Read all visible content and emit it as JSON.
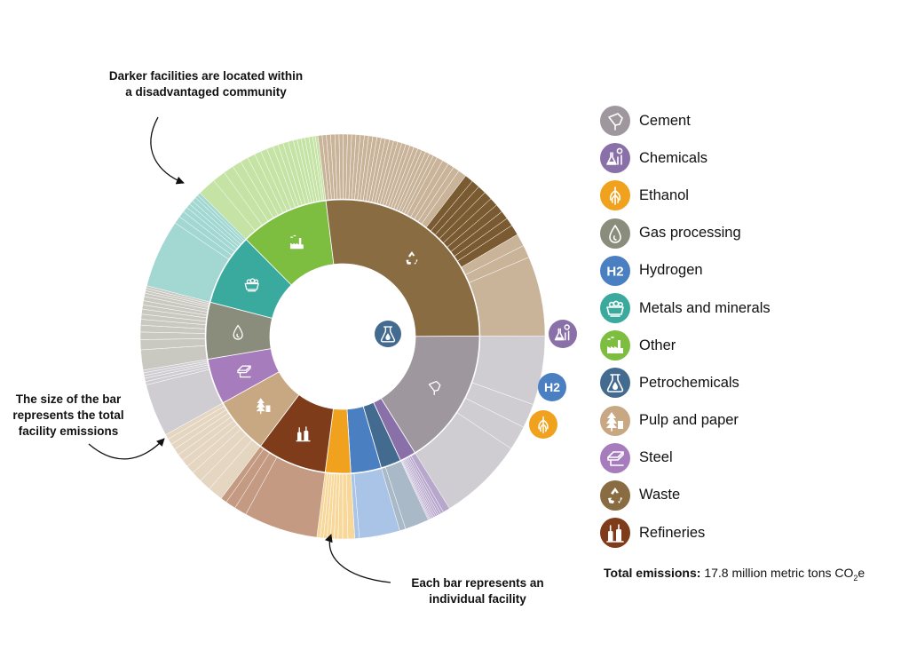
{
  "annotations": {
    "darker": "Darker facilities are located within a disadvantaged community",
    "size": "The size of the bar represents the total facility emissions",
    "each": "Each bar represents an individual facility"
  },
  "total": {
    "label": "Total emissions:",
    "value": "17.8 million metric tons CO",
    "sub": "2",
    "suffix": "e"
  },
  "chart_data": {
    "type": "sunburst",
    "unit": "million metric tons CO2e",
    "total": 17.8,
    "sectors": [
      {
        "name": "Cement",
        "color": "#9e989e",
        "light": "#cfcdd2",
        "dark": "#8a848a",
        "icon": "cement-icon",
        "share": 0.162,
        "bars": [
          0.34,
          0.12,
          0.12,
          0.42
        ]
      },
      {
        "name": "Chemicals",
        "color": "#8a70a8",
        "light": "#b7a7cc",
        "dark": "#6a548a",
        "icon": "chemicals-icon",
        "share": 0.019,
        "bars": [
          0.3,
          0.12,
          0.1,
          0.08,
          0.08,
          0.07,
          0.06,
          0.06,
          0.05,
          0.04,
          0.04
        ]
      },
      {
        "name": "Petrochemicals",
        "color": "#436a8f",
        "light": "#a9b9c8",
        "dark": "#2f5578",
        "icon": "petrochemicals-icon",
        "share": 0.024,
        "bars": [
          0.8,
          0.2
        ]
      },
      {
        "name": "Hydrogen",
        "color": "#4a7fc2",
        "light": "#a9c4e6",
        "dark": "#3a6db1",
        "icon": "hydrogen-icon",
        "share": 0.036,
        "bars": [
          0.9,
          0.1
        ]
      },
      {
        "name": "Ethanol",
        "color": "#f0a21e",
        "light": "#f8d89a",
        "dark": "#e8941a",
        "icon": "ethanol-icon",
        "share": 0.03,
        "bars": [
          0.18,
          0.14,
          0.12,
          0.1,
          0.1,
          0.09,
          0.09,
          0.09,
          0.09
        ]
      },
      {
        "name": "Refineries",
        "color": "#7e3c1a",
        "light": "#c49a82",
        "dark": "#6e3214",
        "icon": "refineries-icon",
        "share": 0.082,
        "bars": [
          0.72,
          0.12,
          0.1,
          0.06
        ]
      },
      {
        "name": "Pulp and paper",
        "color": "#c8a882",
        "light": "#e5d6c2",
        "dark": "#a88a64",
        "icon": "pulp-paper-icon",
        "share": 0.067,
        "bars": [
          0.18,
          0.14,
          0.13,
          0.1,
          0.09,
          0.08,
          0.08,
          0.07,
          0.07,
          0.06
        ]
      },
      {
        "name": "Steel",
        "color": "#a77cbd",
        "light": "#cfcdd2",
        "dark": "#8a5aa3",
        "icon": "steel-icon",
        "share": 0.054,
        "bars": [
          0.78,
          0.05,
          0.05,
          0.04,
          0.04,
          0.04
        ]
      },
      {
        "name": "Gas processing",
        "color": "#8a8c7c",
        "light": "#cac9c1",
        "dark": "#6e705f",
        "icon": "gas-processing-icon",
        "share": 0.067,
        "bars": [
          0.24,
          0.12,
          0.09,
          0.08,
          0.07,
          0.06,
          0.06,
          0.05,
          0.05,
          0.05,
          0.04,
          0.03,
          0.03,
          0.03
        ]
      },
      {
        "name": "Metals and minerals",
        "color": "#3aa99e",
        "light": "#a3d8d2",
        "dark": "#2a9a8e",
        "icon": "metals-minerals-icon",
        "share": 0.085,
        "bars": [
          0.64,
          0.07,
          0.06,
          0.05,
          0.04,
          0.04,
          0.04,
          0.03,
          0.03
        ]
      },
      {
        "name": "Other",
        "color": "#7dbd40",
        "light": "#c4e3a4",
        "dark": "#6aaa2e",
        "icon": "other-icon",
        "share": 0.105,
        "bars": [
          0.14,
          0.1,
          0.08,
          0.07,
          0.06,
          0.06,
          0.05,
          0.05,
          0.05,
          0.04,
          0.04,
          0.04,
          0.04,
          0.03,
          0.03,
          0.03,
          0.03,
          0.03,
          0.02,
          0.02
        ]
      },
      {
        "name": "Waste",
        "color": "#8a6c42",
        "light": "#c9b49a",
        "dark": "#7a5a30",
        "icon": "waste-icon",
        "share": 0.269,
        "bars": [
          0.02,
          0.02,
          0.02,
          0.02,
          0.02,
          0.02,
          0.02,
          0.02,
          0.02,
          0.02,
          0.02,
          0.02,
          0.02,
          0.02,
          0.02,
          0.02,
          0.02,
          0.02,
          0.02,
          0.02,
          0.02,
          0.02,
          0.02,
          0.02,
          0.02,
          0.02,
          0.02,
          0.02,
          0.02,
          0.03,
          0.03,
          0.03,
          0.03,
          0.04,
          0.04,
          0.04,
          0.04,
          0.04,
          0.04,
          0.04,
          0.04,
          0.04,
          0.05,
          0.06,
          0.06,
          0.38
        ]
      }
    ],
    "legend": [
      "Cement",
      "Chemicals",
      "Ethanol",
      "Gas processing",
      "Hydrogen",
      "Metals and minerals",
      "Other",
      "Petrochemicals",
      "Pulp and paper",
      "Steel",
      "Waste",
      "Refineries"
    ],
    "disadvantaged": {
      "Waste": [
        34,
        35,
        36,
        37,
        38,
        39,
        40,
        41,
        42
      ]
    }
  }
}
